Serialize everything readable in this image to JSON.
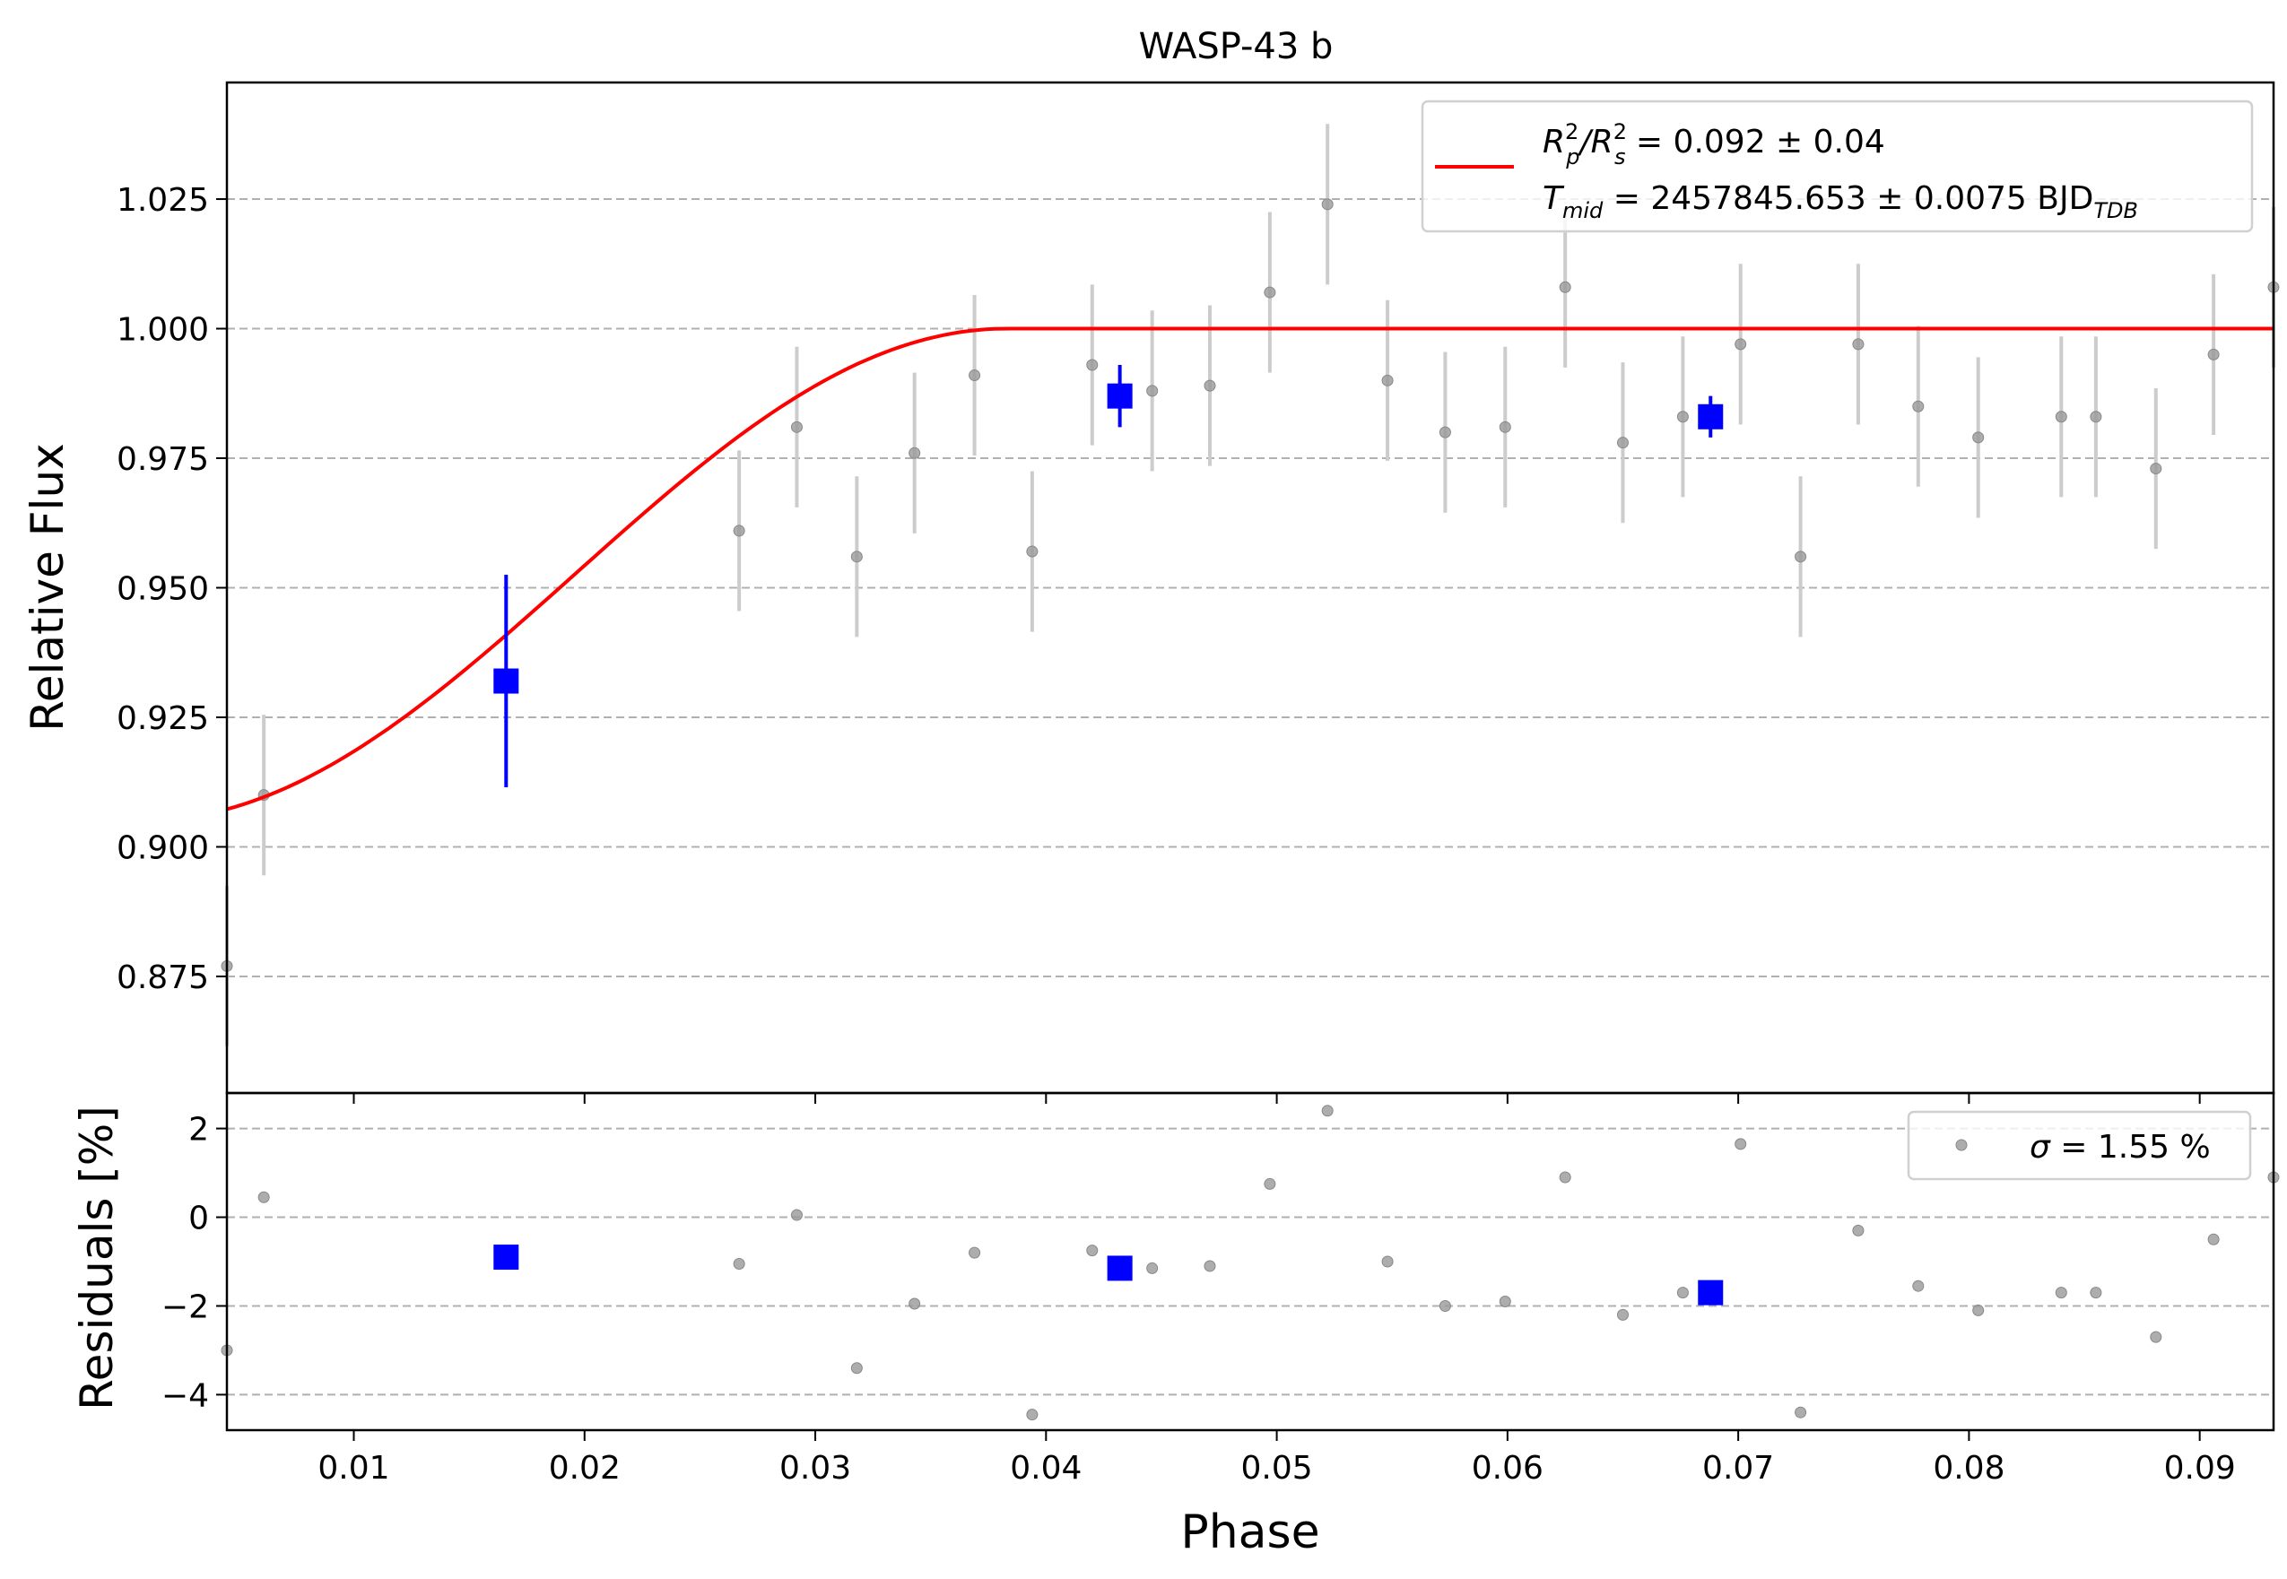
{
  "chart_data": [
    {
      "type": "scatter",
      "panel": "light-curve",
      "title": "WASP-43 b",
      "xlabel": "Phase",
      "ylabel": "Relative Flux",
      "xlim": [
        0.0045,
        0.0932
      ],
      "ylim": [
        0.8525,
        1.0475
      ],
      "x_ticks": [
        0.01,
        0.02,
        0.03,
        0.04,
        0.05,
        0.06,
        0.07,
        0.08,
        0.09
      ],
      "x_tick_labels": [
        "0.01",
        "0.02",
        "0.03",
        "0.04",
        "0.05",
        "0.06",
        "0.07",
        "0.08",
        "0.09"
      ],
      "y_ticks": [
        0.875,
        0.9,
        0.925,
        0.95,
        0.975,
        1.0,
        1.025
      ],
      "y_tick_labels": [
        "0.875",
        "0.900",
        "0.925",
        "0.950",
        "0.975",
        "1.000",
        "1.025"
      ],
      "grid": "horizontal dashed",
      "legend_position": "top-right",
      "legend": {
        "line1": {
          "prefix": "R",
          "prefix_sub": "p",
          "prefix_sup": "2",
          "slash": "/R",
          "denom_sub": "s",
          "denom_sup": "2",
          "value": " = 0.092 ± 0.04"
        },
        "line2": {
          "prefix": "T",
          "prefix_sub": "mid",
          "value": " = 2457845.653 ± 0.0075 BJD",
          "unit_sub": "TDB"
        }
      },
      "colors": {
        "model": "#ff0000",
        "binned": "#0000ff",
        "raw": "#999999",
        "raw_err": "#cccccc",
        "grid": "#b0b0b0"
      },
      "model_curve": {
        "baseline": 1.0,
        "depth": 0.095,
        "phase_flat_start": 0.0383,
        "phase_ingress_start": 0.0008,
        "note": "transit egress model"
      },
      "series": [
        {
          "role": "raw",
          "x": [
            0.0045,
            0.0061,
            0.0267,
            0.0292,
            0.0318,
            0.0343,
            0.0369,
            0.0394,
            0.042,
            0.0446,
            0.0471,
            0.0497,
            0.0522,
            0.0548,
            0.0573,
            0.0599,
            0.0625,
            0.065,
            0.0676,
            0.0701,
            0.0727,
            0.0752,
            0.0778,
            0.0804,
            0.084,
            0.0855,
            0.0881,
            0.0906,
            0.0932
          ],
          "y": [
            0.877,
            0.91,
            0.961,
            0.981,
            0.956,
            0.976,
            0.991,
            0.957,
            0.993,
            0.988,
            0.989,
            1.007,
            1.024,
            0.99,
            0.98,
            0.981,
            1.008,
            0.978,
            0.983,
            0.997,
            0.956,
            0.997,
            0.985,
            0.979,
            0.983,
            0.983,
            0.973,
            0.995,
            1.008
          ],
          "err": 0.0155
        },
        {
          "role": "binned",
          "x": [
            0.0166,
            0.0432,
            0.0688
          ],
          "y": [
            0.932,
            0.987,
            0.983
          ],
          "err": [
            0.0205,
            0.006,
            0.004
          ]
        }
      ]
    },
    {
      "type": "scatter",
      "panel": "residuals",
      "xlabel": "Phase",
      "ylabel": "Residuals [%]",
      "xlim": [
        0.0045,
        0.0932
      ],
      "ylim": [
        -4.8,
        2.8
      ],
      "y_ticks": [
        -4,
        -2,
        0,
        2
      ],
      "y_tick_labels": [
        "−4",
        "−2",
        "0",
        "2"
      ],
      "grid": "horizontal dashed",
      "legend_position": "top-right",
      "legend": {
        "sigma": "σ",
        "value": " = 1.55 %"
      },
      "series": [
        {
          "role": "raw",
          "x": [
            0.0045,
            0.0061,
            0.0267,
            0.0292,
            0.0318,
            0.0343,
            0.0369,
            0.0394,
            0.042,
            0.0446,
            0.0471,
            0.0497,
            0.0522,
            0.0548,
            0.0573,
            0.0599,
            0.0625,
            0.065,
            0.0676,
            0.0701,
            0.0727,
            0.0752,
            0.0778,
            0.0804,
            0.084,
            0.0855,
            0.0881,
            0.0906,
            0.0932
          ],
          "y": [
            -3.0,
            0.45,
            -1.05,
            0.05,
            -3.4,
            -1.95,
            -0.8,
            -4.45,
            -0.75,
            -1.15,
            -1.1,
            0.75,
            2.4,
            -1.0,
            -2.0,
            -1.9,
            0.9,
            -2.2,
            -1.7,
            1.65,
            -4.4,
            -0.3,
            -1.55,
            -2.1,
            -1.7,
            -1.7,
            -2.7,
            -0.5,
            0.9
          ]
        },
        {
          "role": "binned",
          "x": [
            0.0166,
            0.0432,
            0.0688
          ],
          "y": [
            -0.9,
            -1.15,
            -1.7
          ]
        }
      ]
    }
  ]
}
